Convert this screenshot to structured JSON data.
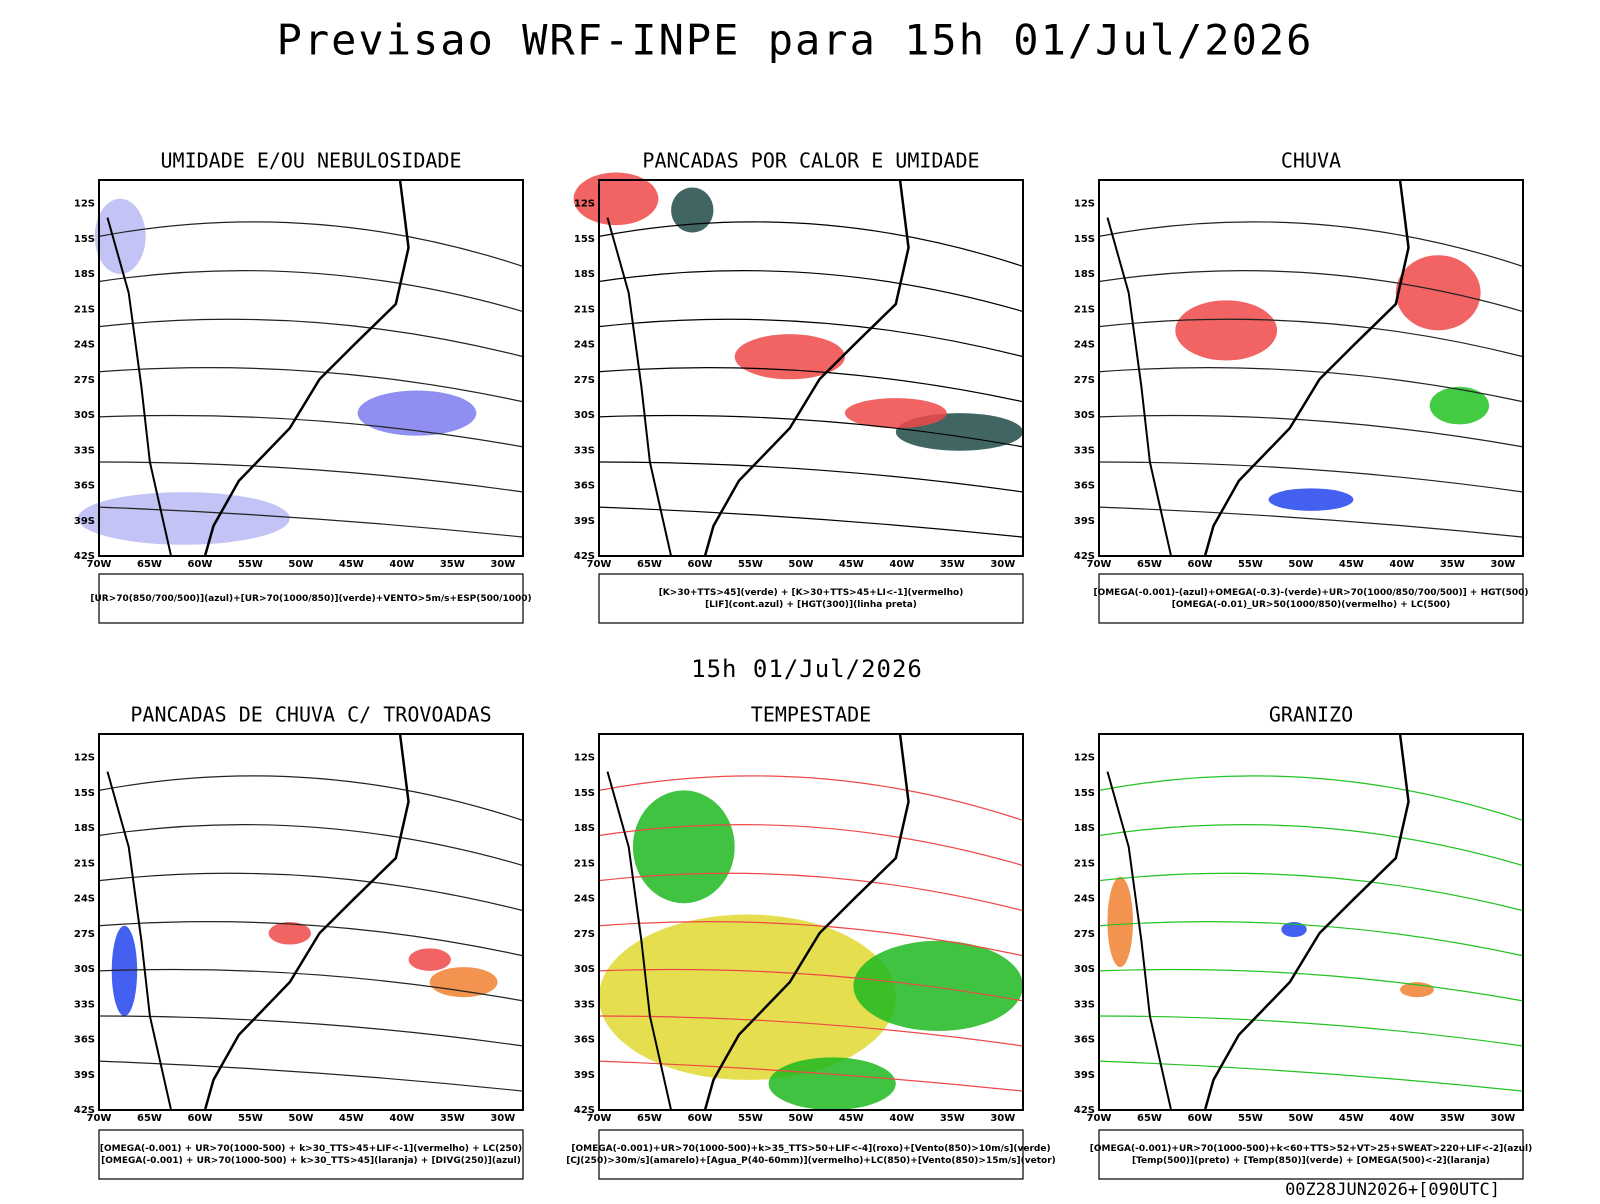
{
  "header": {
    "title": "Previsao WRF-INPE  para 15h 01/Jul/2026"
  },
  "lat_ticks": [
    "12S",
    "15S",
    "18S",
    "21S",
    "24S",
    "27S",
    "30S",
    "33S",
    "36S",
    "39S",
    "42S"
  ],
  "lon_ticks": [
    "70W",
    "65W",
    "60W",
    "55W",
    "50W",
    "45W",
    "40W",
    "35W",
    "30W"
  ],
  "panels": [
    {
      "title": "UMIDADE E/OU NEBULOSIDADE",
      "caption": [
        "[UR>70(850/700/500)](azul)+[UR>70(1000/850)](verde)+VENTO>5m/s+ESP(500/1000)"
      ]
    },
    {
      "title": "PANCADAS POR CALOR E UMIDADE",
      "caption": [
        "[K>30+TTS>45](verde) + [K>30+TTS>45+LI<-1](vermelho)",
        "[LIF](cont.azul) + [HGT(300)](linha preta)"
      ]
    },
    {
      "title": "CHUVA",
      "caption": [
        "[OMEGA(-0.001)-(azul)+OMEGA(-0.3)-(verde)+UR>70(1000/850/700/500)] + HGT(500)",
        "[OMEGA(-0.01)_UR>50(1000/850)(vermelho) + LC(500)"
      ]
    },
    {
      "title": "PANCADAS DE CHUVA C/ TROVOADAS",
      "caption": [
        "[OMEGA(-0.001) + UR>70(1000-500) + k>30_TTS>45+LIF<-1](vermelho) + LC(250)",
        "[OMEGA(-0.001) + UR>70(1000-500) + k>30_TTS>45](laranja) + [DIVG(250)](azul)"
      ]
    },
    {
      "title": "TEMPESTADE",
      "caption": [
        "[OMEGA(-0.001)+UR>70(1000-500)+k>35_TTS>50+LIF<-4](roxo)+[Vento(850)>10m/s](verde)",
        "[CJ(250)>30m/s](amarelo)+[Agua_P(40-60mm)](vermelho)+LC(850)+[Vento(850)>15m/s](vetor)"
      ]
    },
    {
      "title": "GRANIZO",
      "caption": [
        "[OMEGA(-0.001)+UR>70(1000-500)+k<60+TTS>52+VT>25+SWEAT>220+LIF<-2](azul)",
        "[Temp(500)](preto) + [Temp(850)](verde) + [OMEGA(500)<-2](laranja)"
      ]
    }
  ],
  "mid_date": "15h 01/Jul/2026",
  "footer": "00Z28JUN2026+[090UTC]"
}
